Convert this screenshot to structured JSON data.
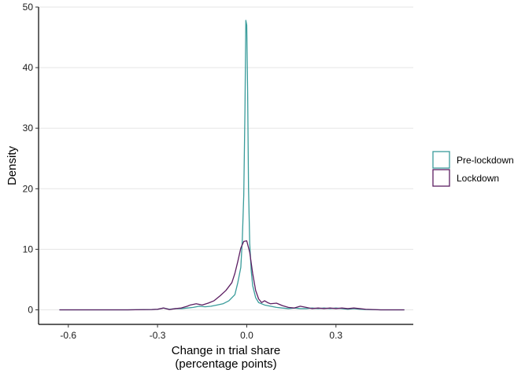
{
  "chart_data": {
    "type": "line",
    "xlabel": "Change in trial share",
    "xlabel_line2": "(percentage points)",
    "ylabel": "Density",
    "xlim": [
      -0.7,
      0.56
    ],
    "ylim": [
      -2.4,
      50
    ],
    "x_ticks": [
      -0.6,
      -0.3,
      0.0,
      0.3
    ],
    "x_tick_labels": [
      "-0.6",
      "-0.3",
      "0.0",
      "0.3"
    ],
    "y_ticks": [
      0,
      10,
      20,
      30,
      40,
      50
    ],
    "y_tick_labels": [
      "0",
      "10",
      "20",
      "30",
      "40",
      "50"
    ],
    "grid": "horizontal-major",
    "legend_position": "right",
    "series": [
      {
        "name": "Pre-lockdown",
        "color": "#3a9c9b",
        "x": [
          -0.63,
          -0.4,
          -0.32,
          -0.3,
          -0.28,
          -0.26,
          -0.24,
          -0.22,
          -0.2,
          -0.18,
          -0.16,
          -0.14,
          -0.12,
          -0.1,
          -0.08,
          -0.06,
          -0.04,
          -0.03,
          -0.02,
          -0.015,
          -0.01,
          -0.006,
          -0.003,
          0.0,
          0.003,
          0.006,
          0.01,
          0.015,
          0.02,
          0.03,
          0.04,
          0.06,
          0.08,
          0.1,
          0.12,
          0.14,
          0.16,
          0.18,
          0.2,
          0.22,
          0.24,
          0.26,
          0.28,
          0.3,
          0.32,
          0.34,
          0.36,
          0.38,
          0.4,
          0.45,
          0.53
        ],
        "y": [
          0,
          0,
          0.05,
          0.1,
          0.3,
          0.1,
          0.2,
          0.2,
          0.3,
          0.4,
          0.6,
          0.5,
          0.6,
          0.8,
          1.0,
          1.5,
          2.5,
          4.5,
          7.0,
          11.5,
          19.0,
          33.0,
          47.8,
          47.0,
          36.0,
          20.0,
          11.0,
          6.5,
          4.0,
          2.0,
          1.2,
          0.8,
          0.6,
          0.4,
          0.3,
          0.2,
          0.3,
          0.2,
          0.2,
          0.3,
          0.2,
          0.3,
          0.2,
          0.3,
          0.2,
          0.1,
          0.2,
          0.1,
          0.05,
          0,
          0
        ]
      },
      {
        "name": "Lockdown",
        "color": "#5c1e62",
        "x": [
          -0.63,
          -0.4,
          -0.32,
          -0.3,
          -0.28,
          -0.26,
          -0.24,
          -0.22,
          -0.2,
          -0.19,
          -0.17,
          -0.15,
          -0.13,
          -0.11,
          -0.09,
          -0.07,
          -0.05,
          -0.04,
          -0.03,
          -0.02,
          -0.01,
          0.0,
          0.01,
          0.02,
          0.03,
          0.04,
          0.05,
          0.06,
          0.07,
          0.08,
          0.1,
          0.12,
          0.14,
          0.16,
          0.18,
          0.2,
          0.22,
          0.24,
          0.26,
          0.28,
          0.3,
          0.32,
          0.34,
          0.36,
          0.38,
          0.4,
          0.45,
          0.53
        ],
        "y": [
          0,
          0,
          0.05,
          0.1,
          0.3,
          0.05,
          0.2,
          0.3,
          0.6,
          0.8,
          1.0,
          0.8,
          1.1,
          1.5,
          2.3,
          3.2,
          4.5,
          6.0,
          8.0,
          10.2,
          11.3,
          11.4,
          9.5,
          6.0,
          3.2,
          1.8,
          1.2,
          1.5,
          1.2,
          1.0,
          1.1,
          0.7,
          0.4,
          0.3,
          0.6,
          0.4,
          0.2,
          0.3,
          0.2,
          0.3,
          0.2,
          0.3,
          0.2,
          0.3,
          0.2,
          0.1,
          0,
          0
        ]
      }
    ]
  }
}
